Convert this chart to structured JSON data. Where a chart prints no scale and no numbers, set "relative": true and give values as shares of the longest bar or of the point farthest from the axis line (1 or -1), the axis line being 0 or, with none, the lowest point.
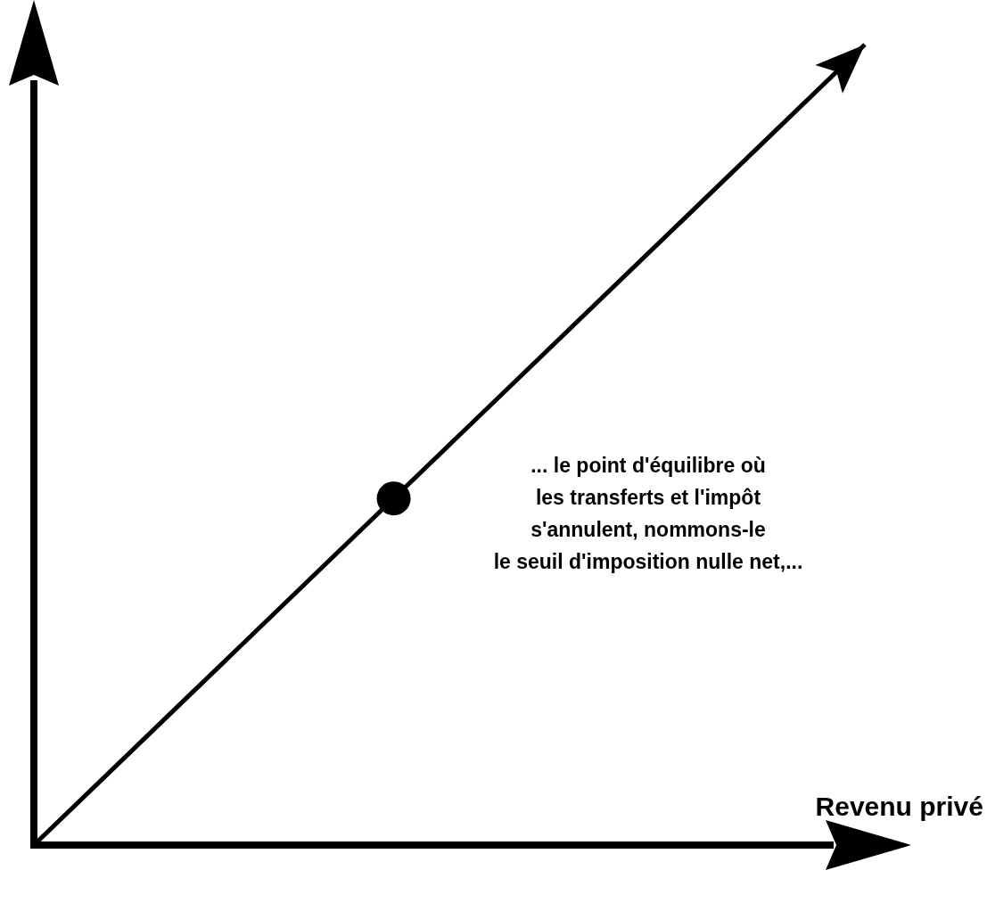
{
  "chart_data": {
    "type": "line",
    "relative": true,
    "xlabel": "Revenu privé",
    "categories": [
      null,
      null,
      null,
      null,
      null,
      null
    ],
    "series": [
      {
        "color": "#000000",
        "values": [
          0,
          0.2,
          0.4,
          0.6,
          0.8,
          1
        ]
      }
    ],
    "annotations": [
      "... le point d'équilibre où\nles transferts et l'impôt\ns'annulent, nommons-le\nle seuil d'imposition nulle net,..."
    ]
  }
}
